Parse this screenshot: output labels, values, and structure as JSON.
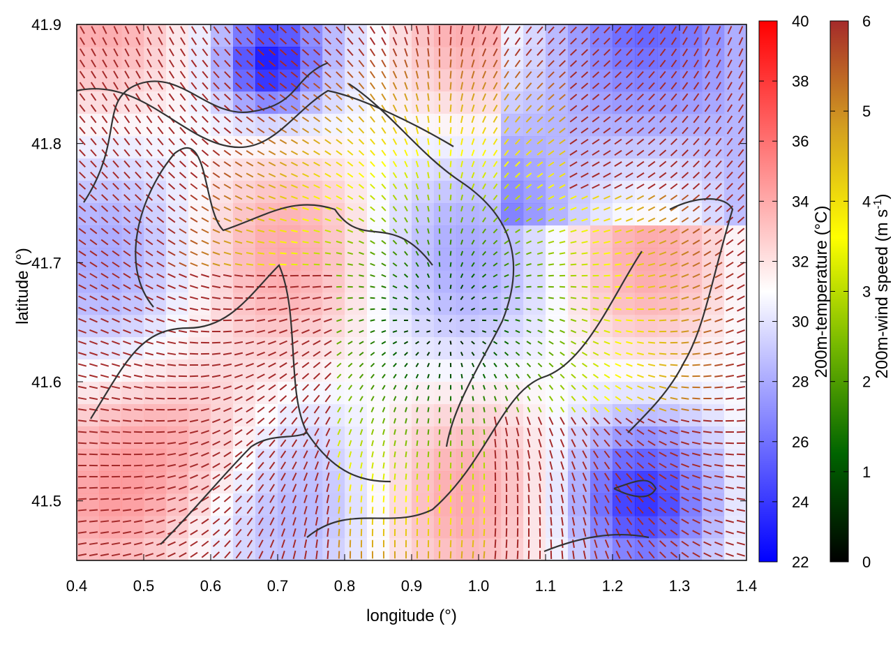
{
  "chart_data": {
    "type": "heatmap",
    "xlabel": "longitude (°)",
    "ylabel": "latitude (°)",
    "xlim": [
      0.4,
      1.4
    ],
    "ylim": [
      41.45,
      41.9
    ],
    "xticks": [
      "0.4",
      "0.5",
      "0.6",
      "0.7",
      "0.8",
      "0.9",
      "1.0",
      "1.1",
      "1.2",
      "1.3",
      "1.4"
    ],
    "yticks": [
      "41.5",
      "41.6",
      "41.7",
      "41.8",
      "41.9"
    ],
    "grid": false,
    "colorbars": [
      {
        "name": "temperature",
        "label": "200m-temperature (°C)",
        "range": [
          22,
          40
        ],
        "ticks": [
          "22",
          "24",
          "26",
          "28",
          "30",
          "32",
          "34",
          "36",
          "38",
          "40"
        ],
        "colors": [
          "#0000ff",
          "#ffffff",
          "#ff0000"
        ]
      },
      {
        "name": "wind",
        "label_main": "200m-wind speed (m s",
        "label_sup": "-1",
        "label_end": ")",
        "range": [
          0,
          6
        ],
        "ticks": [
          "0",
          "1",
          "2",
          "3",
          "4",
          "5",
          "6"
        ],
        "colors": [
          "#000000",
          "#006400",
          "#76b900",
          "#ffff00",
          "#d4a020",
          "#a52a2a"
        ]
      }
    ],
    "contour_color": "#333333"
  }
}
